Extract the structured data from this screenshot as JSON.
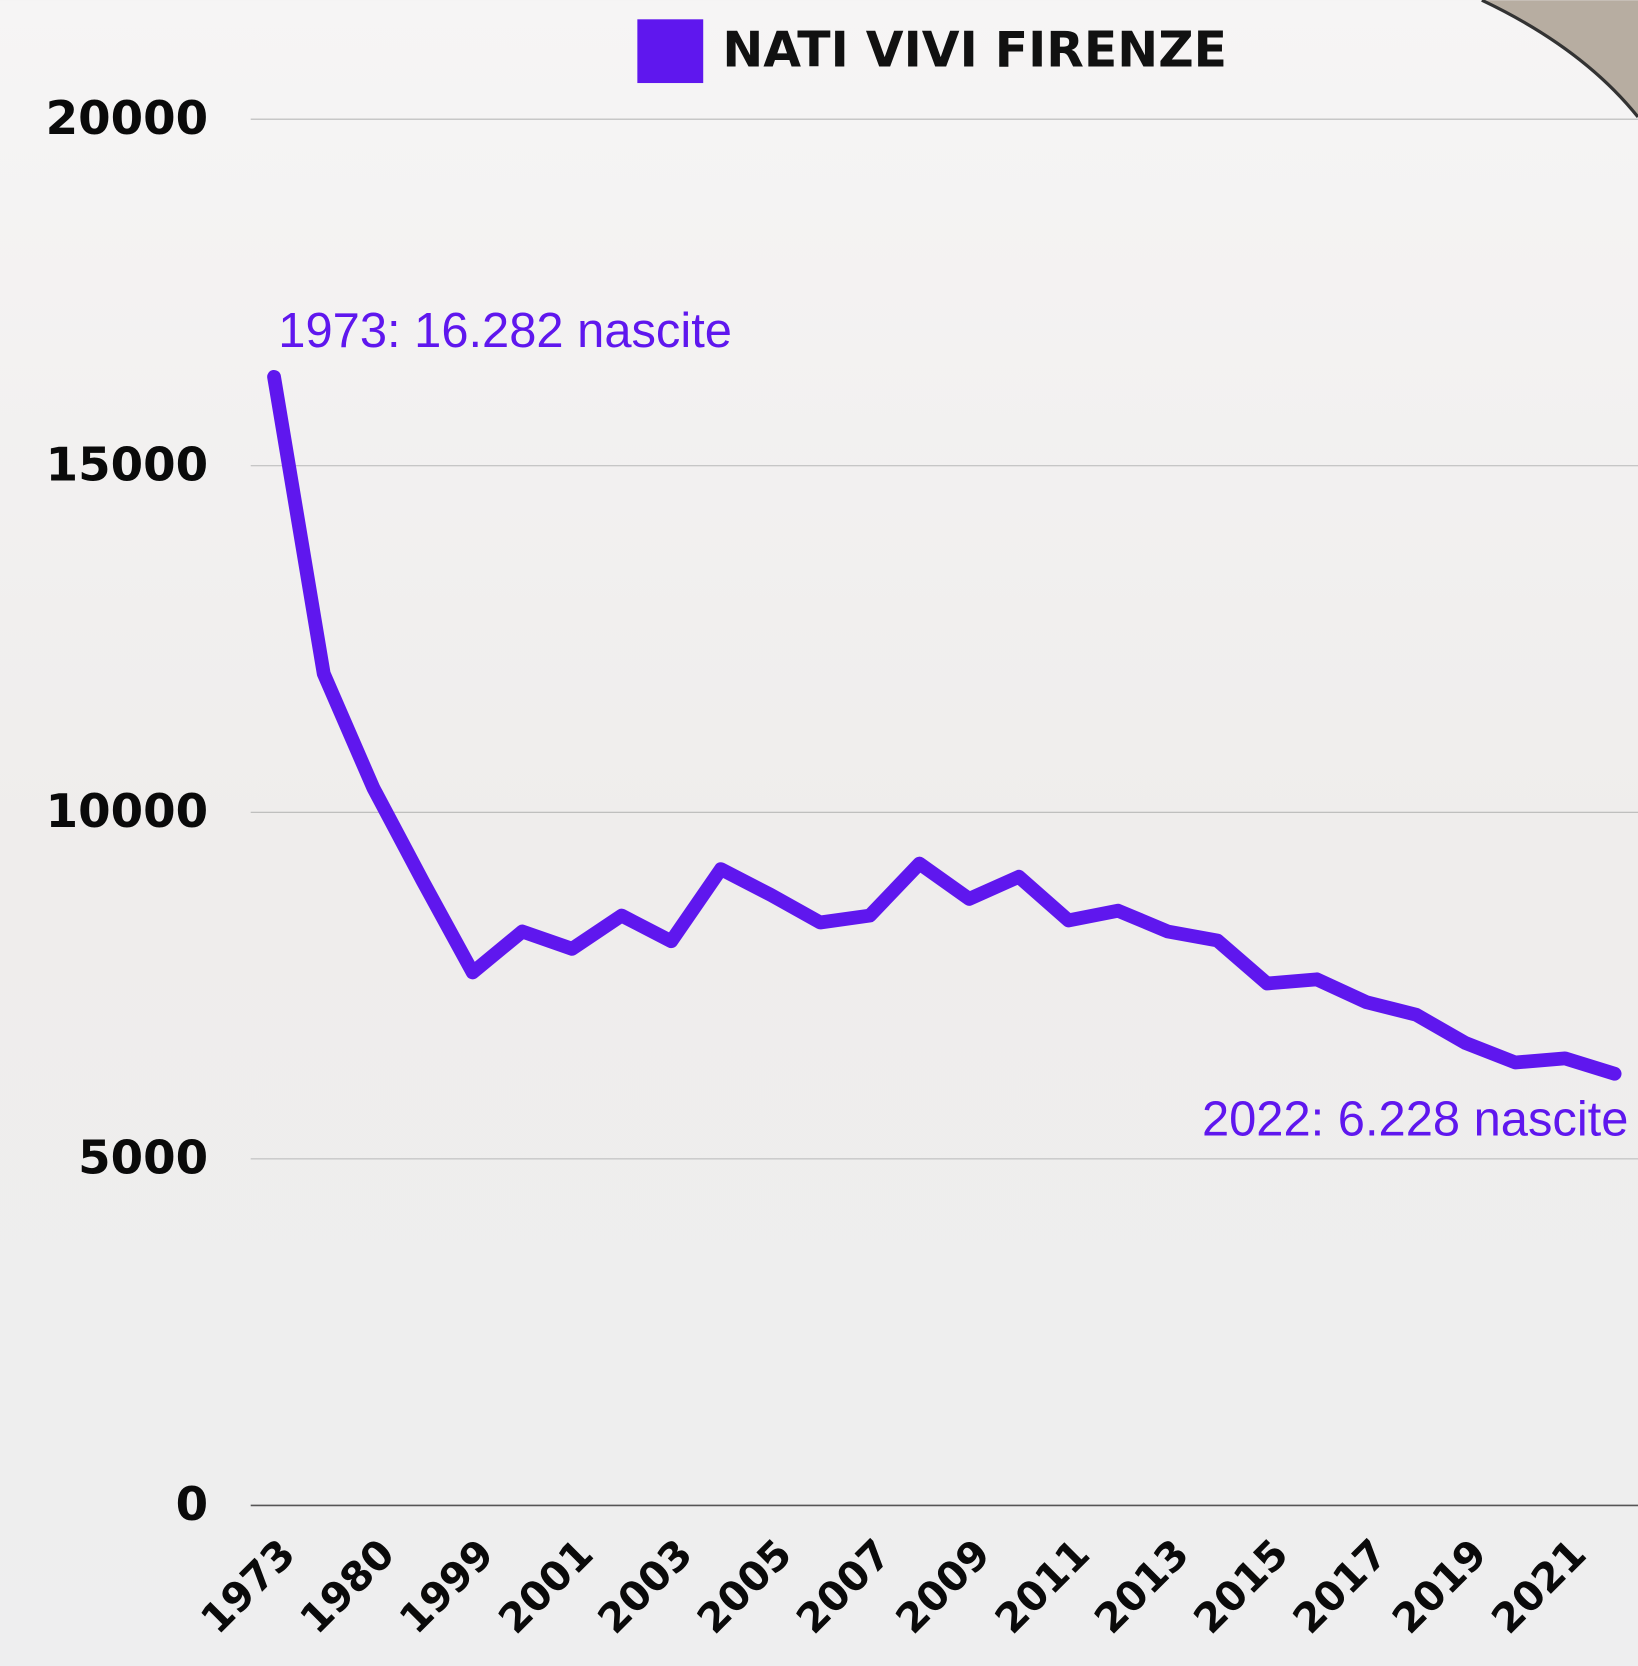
{
  "chart_data": {
    "type": "line",
    "categories": [
      "1973",
      null,
      "1980",
      null,
      "1999",
      null,
      "2001",
      null,
      "2003",
      null,
      "2005",
      null,
      "2007",
      null,
      "2009",
      null,
      "2011",
      null,
      "2013",
      null,
      "2015",
      null,
      "2017",
      null,
      "2019",
      null,
      "2021",
      null
    ],
    "series": [
      {
        "name": "NATI VIVI FIRENZE",
        "color": "#5f17ee",
        "values": [
          16282,
          12000,
          10350,
          9000,
          7690,
          8280,
          8030,
          8510,
          8140,
          9180,
          8810,
          8410,
          8510,
          9260,
          8750,
          9070,
          8440,
          8580,
          8280,
          8150,
          7530,
          7590,
          7260,
          7080,
          6670,
          6390,
          6450,
          6228
        ]
      }
    ],
    "ylim": [
      0,
      20000
    ],
    "yticks": [
      0,
      5000,
      10000,
      15000,
      20000
    ],
    "grid": true,
    "legend": "top",
    "annotations": [
      {
        "text": "1973: 16.282 nascite",
        "index": 0
      },
      {
        "text": "2022: 6.228 nascite",
        "index": 27
      }
    ]
  }
}
